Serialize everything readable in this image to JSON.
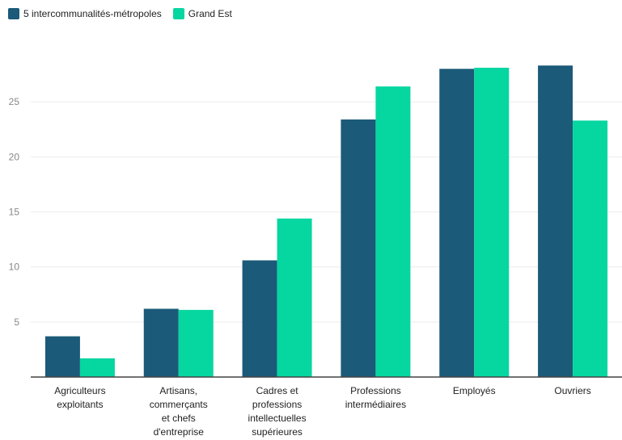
{
  "chart_data": {
    "type": "bar",
    "categories": [
      [
        "Agriculteurs",
        "exploitants"
      ],
      [
        "Artisans,",
        "commerçants",
        "et chefs",
        "d'entreprise"
      ],
      [
        "Cadres et",
        "professions",
        "intellectuelles",
        "supérieures"
      ],
      [
        "Professions",
        "intermédiaires"
      ],
      [
        "Employés"
      ],
      [
        "Ouvriers"
      ]
    ],
    "series": [
      {
        "name": "5 intercommunalités-métropoles",
        "color": "#1b5a78",
        "values": [
          3.7,
          6.2,
          10.6,
          23.4,
          28.0,
          28.3
        ]
      },
      {
        "name": "Grand Est",
        "color": "#06d6a0",
        "values": [
          1.7,
          6.1,
          14.4,
          26.4,
          28.1,
          23.3
        ]
      }
    ],
    "yticks": [
      "5",
      "10",
      "15",
      "20",
      "25"
    ],
    "ylim": [
      0,
      30
    ],
    "grid": true,
    "legend_position": "top-left"
  }
}
